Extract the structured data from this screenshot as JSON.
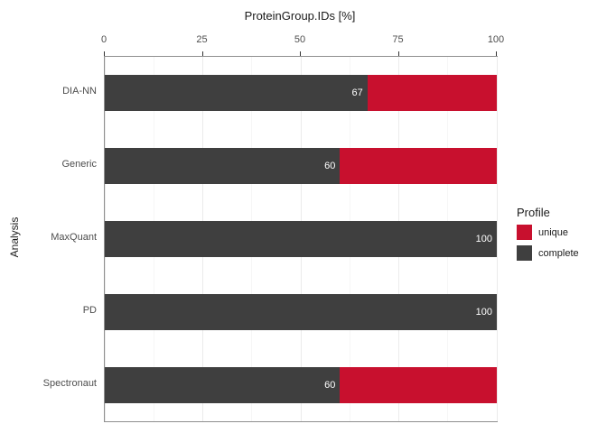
{
  "chart_data": {
    "type": "bar",
    "orientation": "horizontal",
    "stacked": true,
    "title": "ProteinGroup.IDs [%]",
    "xlabel": "",
    "ylabel": "Analysis",
    "xlim": [
      0,
      100
    ],
    "x_ticks": [
      0,
      25,
      50,
      75,
      100
    ],
    "x_minor_ticks": [
      12.5,
      37.5,
      62.5,
      87.5
    ],
    "grid": true,
    "categories": [
      "DIA-NN",
      "Generic",
      "MaxQuant",
      "PD",
      "Spectronaut"
    ],
    "series": [
      {
        "name": "complete",
        "color": "#3f3f3f",
        "values": [
          67,
          60,
          100,
          100,
          60
        ],
        "value_labels": [
          "67",
          "60",
          "100",
          "100",
          "60"
        ]
      },
      {
        "name": "unique",
        "color": "#c8102e",
        "values": [
          33,
          40,
          0,
          0,
          40
        ],
        "value_labels": [
          "",
          "",
          "",
          "",
          ""
        ]
      }
    ],
    "legend": {
      "title": "Profile",
      "position": "right",
      "items": [
        {
          "label": "unique",
          "color": "#c8102e"
        },
        {
          "label": "complete",
          "color": "#3f3f3f"
        }
      ]
    }
  }
}
